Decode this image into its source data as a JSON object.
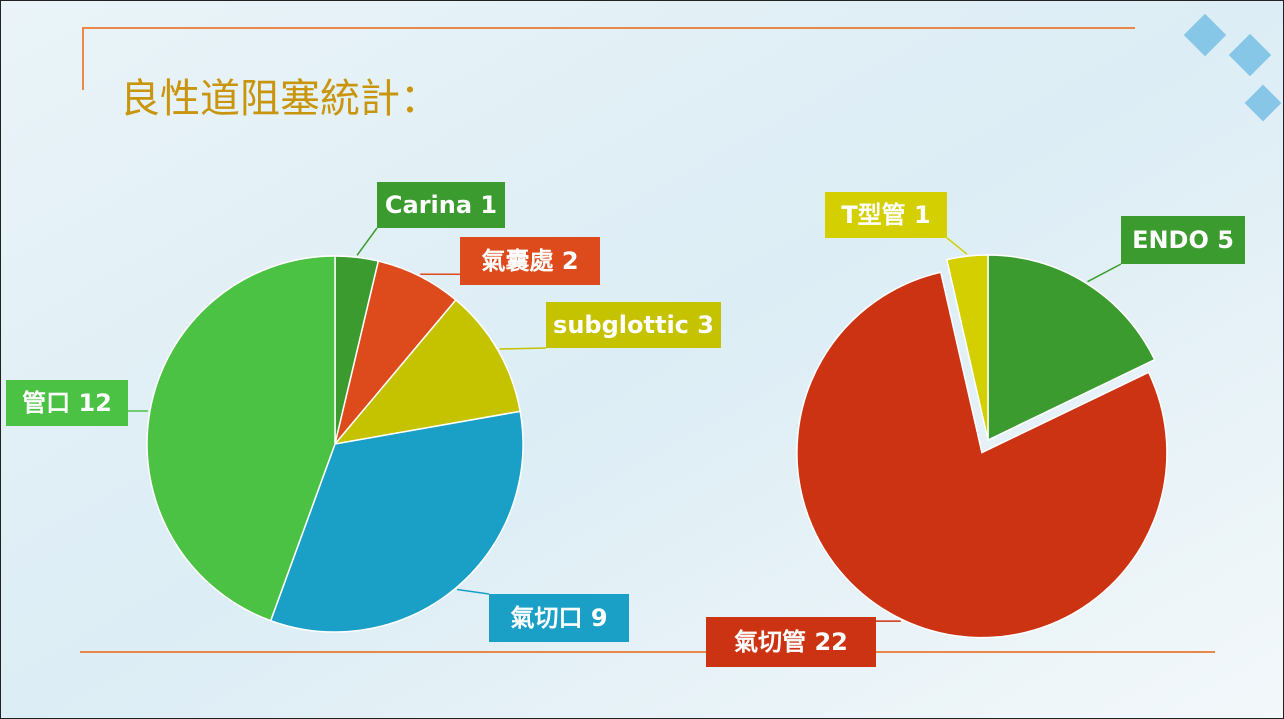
{
  "title": "良性道阻塞統計：",
  "chart_data": [
    {
      "type": "pie",
      "categories": [
        "Carina",
        "氣囊處",
        "subglottic",
        "氣切口",
        "管口"
      ],
      "values": [
        1,
        2,
        3,
        9,
        12
      ],
      "colors": [
        "#3b9b2f",
        "#dd4a1c",
        "#c5c200",
        "#1a9fc6",
        "#4cc244"
      ]
    },
    {
      "type": "pie",
      "categories": [
        "ENDO",
        "氣切管",
        "T型管"
      ],
      "values": [
        5,
        22,
        1
      ],
      "colors": [
        "#3b9b2f",
        "#cc3312",
        "#d3cf00"
      ]
    }
  ]
}
